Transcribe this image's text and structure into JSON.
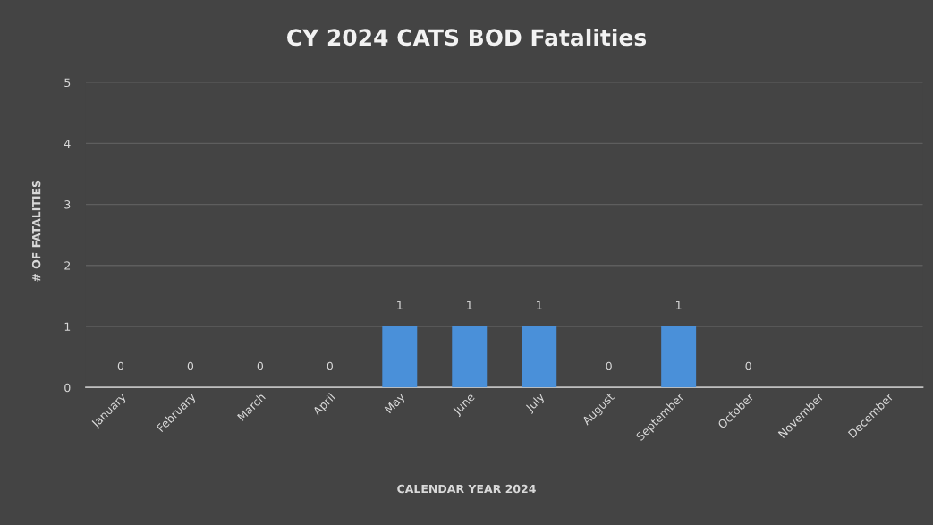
{
  "chart_data": {
    "type": "bar",
    "title": "CY 2024 CATS BOD Fatalities",
    "xlabel": "CALENDAR YEAR 2024",
    "ylabel": "# OF FATALITIES",
    "categories": [
      "January",
      "February",
      "March",
      "April",
      "May",
      "June",
      "July",
      "August",
      "September",
      "October",
      "November",
      "December"
    ],
    "values": [
      0,
      0,
      0,
      0,
      1,
      1,
      1,
      0,
      1,
      0,
      null,
      null
    ],
    "color": "#4a90d9",
    "ylim": [
      0,
      5
    ],
    "yticks": [
      0,
      1,
      2,
      3,
      4,
      5
    ],
    "grid": "y",
    "data_labels": true
  }
}
